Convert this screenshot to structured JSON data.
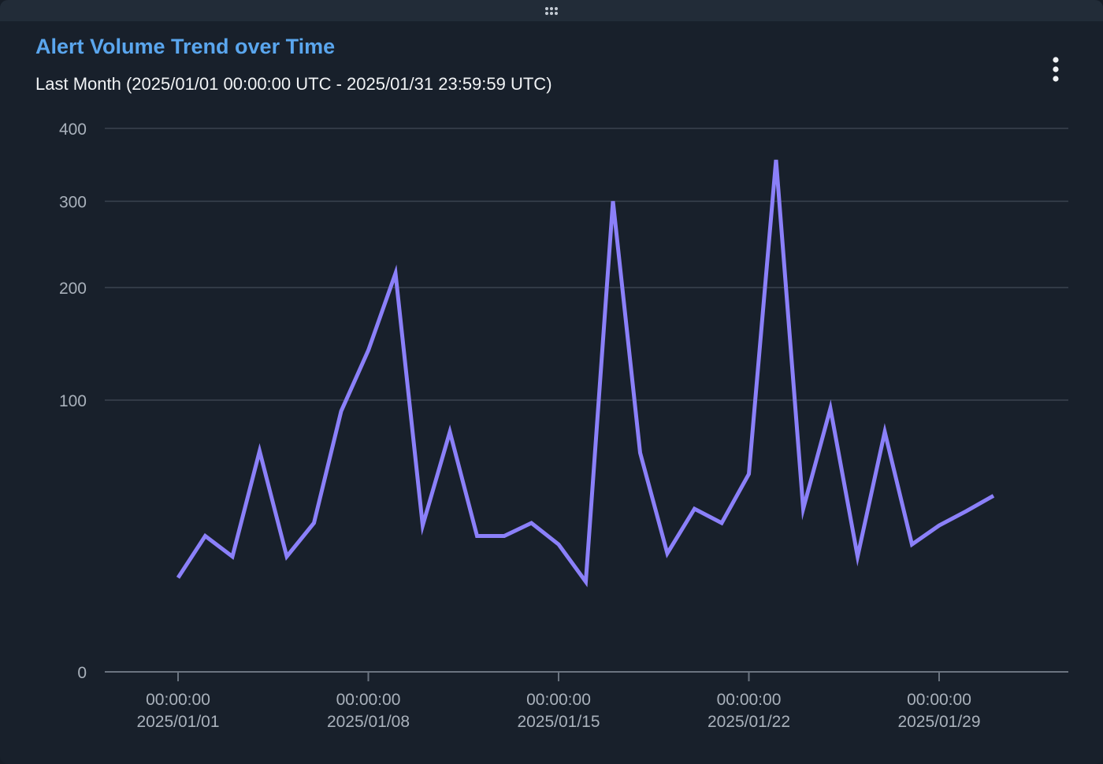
{
  "header": {
    "title": "Alert Volume Trend over Time",
    "subtitle": "Last Month (2025/01/01 00:00:00 UTC - 2025/01/31 23:59:59 UTC)",
    "menu_icon": "kebab-menu-icon",
    "drag_icon": "drag-handle-icon"
  },
  "colors": {
    "background": "#18202b",
    "title": "#5aa6ee",
    "line": "#8b80f9",
    "grid": "#3a4350",
    "axis_text": "#a9b1bb"
  },
  "chart_data": {
    "type": "line",
    "x": [
      "2025/01/01",
      "2025/01/02",
      "2025/01/03",
      "2025/01/04",
      "2025/01/05",
      "2025/01/06",
      "2025/01/07",
      "2025/01/08",
      "2025/01/09",
      "2025/01/10",
      "2025/01/11",
      "2025/01/12",
      "2025/01/13",
      "2025/01/14",
      "2025/01/15",
      "2025/01/16",
      "2025/01/17",
      "2025/01/18",
      "2025/01/19",
      "2025/01/20",
      "2025/01/21",
      "2025/01/22",
      "2025/01/23",
      "2025/01/24",
      "2025/01/25",
      "2025/01/26",
      "2025/01/27",
      "2025/01/28",
      "2025/01/29",
      "2025/01/30",
      "2025/01/31"
    ],
    "values": [
      12,
      25,
      18,
      66,
      18,
      30,
      92,
      140,
      215,
      29,
      78,
      25,
      25,
      30,
      22,
      11,
      300,
      65,
      19,
      36,
      30,
      53,
      355,
      36,
      94,
      18,
      78,
      22,
      29,
      35,
      42
    ],
    "y_ticks": [
      0,
      100,
      200,
      300,
      400
    ],
    "ylim": [
      0,
      400
    ],
    "x_ticks": [
      {
        "date": "2025/01/01",
        "time": "00:00:00"
      },
      {
        "date": "2025/01/08",
        "time": "00:00:00"
      },
      {
        "date": "2025/01/15",
        "time": "00:00:00"
      },
      {
        "date": "2025/01/22",
        "time": "00:00:00"
      },
      {
        "date": "2025/01/29",
        "time": "00:00:00"
      }
    ],
    "scale": "sqrt",
    "grid": true,
    "legend": "none"
  }
}
